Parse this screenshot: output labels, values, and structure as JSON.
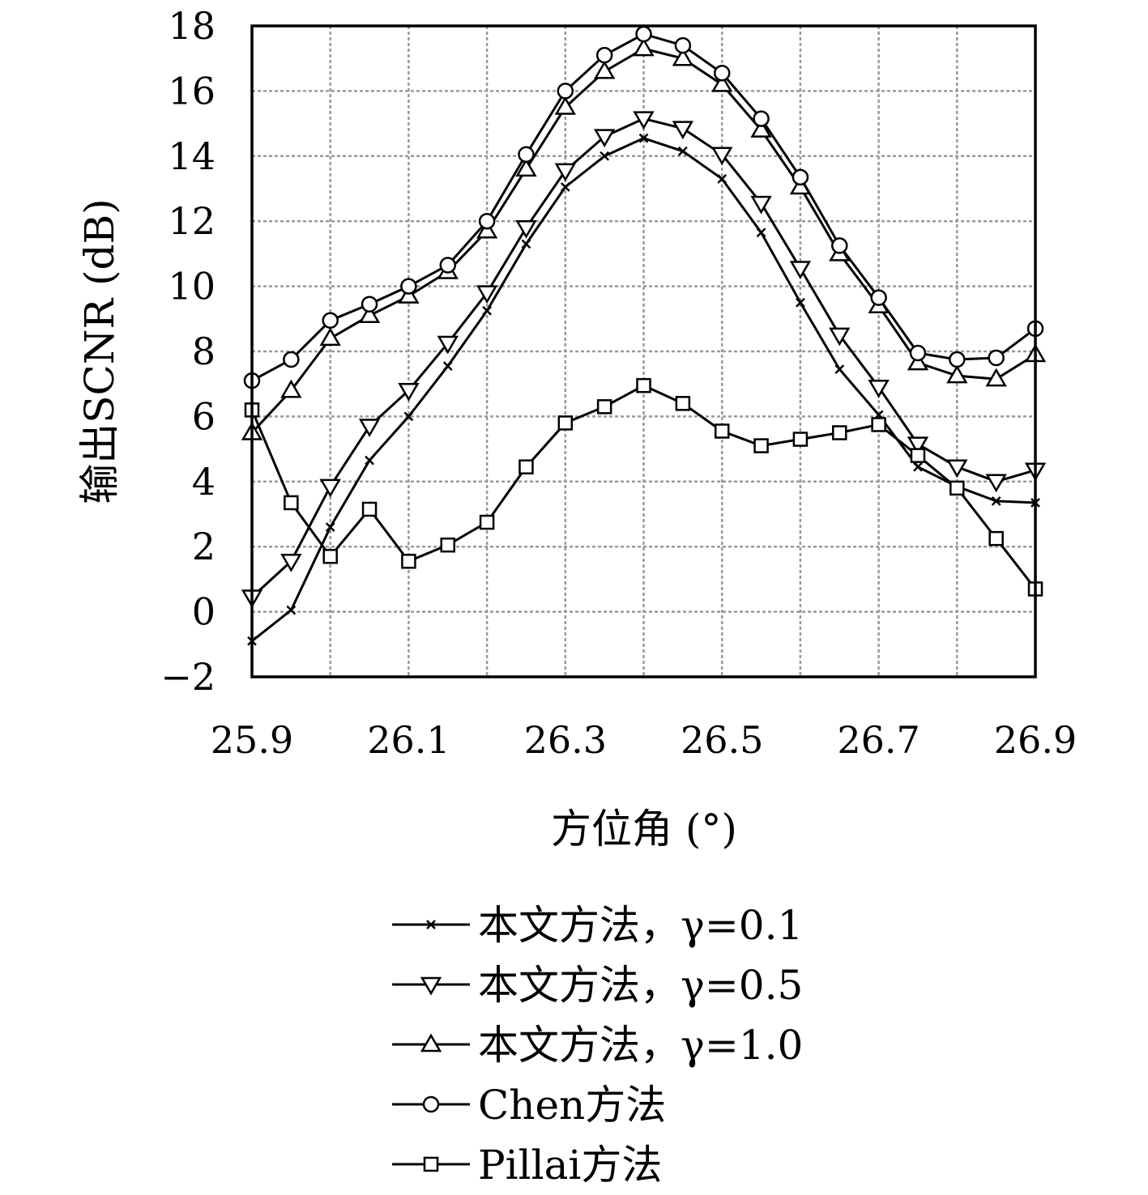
{
  "chart_data": {
    "type": "line",
    "xlabel": "方位角 (°)",
    "ylabel": "输出SCNR (dB)",
    "xlim": [
      25.9,
      26.9
    ],
    "ylim": [
      -2,
      18
    ],
    "xticks": [
      "25.9",
      "26.1",
      "26.3",
      "26.5",
      "26.7",
      "26.9"
    ],
    "yticks": [
      "−2",
      "0",
      "2",
      "4",
      "6",
      "8",
      "10",
      "12",
      "14",
      "16",
      "18"
    ],
    "grid": true,
    "legend_position": "below",
    "x": [
      25.9,
      25.95,
      26.0,
      26.05,
      26.1,
      26.15,
      26.2,
      26.25,
      26.3,
      26.35,
      26.4,
      26.45,
      26.5,
      26.55,
      26.6,
      26.65,
      26.7,
      26.75,
      26.8,
      26.85,
      26.9
    ],
    "series": [
      {
        "name": "本文方法，γ=0.1",
        "marker": "x",
        "values": [
          -0.9,
          0.05,
          2.6,
          4.65,
          6.0,
          7.55,
          9.25,
          11.3,
          13.05,
          14.0,
          14.55,
          14.15,
          13.3,
          11.65,
          9.5,
          7.45,
          6.05,
          4.45,
          3.85,
          3.4,
          3.35
        ]
      },
      {
        "name": "本文方法，γ=0.5",
        "marker": "triangle-down",
        "values": [
          0.45,
          1.55,
          3.85,
          5.7,
          6.8,
          8.25,
          9.8,
          11.8,
          13.55,
          14.6,
          15.15,
          14.85,
          14.05,
          12.55,
          10.55,
          8.5,
          6.9,
          5.15,
          4.45,
          4.0,
          4.35
        ]
      },
      {
        "name": "本文方法，γ=1.0",
        "marker": "triangle-up",
        "values": [
          5.5,
          6.8,
          8.4,
          9.1,
          9.7,
          10.45,
          11.7,
          13.6,
          15.5,
          16.6,
          17.3,
          17.0,
          16.2,
          14.8,
          13.05,
          11.0,
          9.4,
          7.65,
          7.25,
          7.15,
          7.9
        ]
      },
      {
        "name": "Chen方法",
        "marker": "circle",
        "values": [
          7.1,
          7.75,
          8.95,
          9.45,
          10.0,
          10.65,
          12.0,
          14.05,
          16.0,
          17.1,
          17.75,
          17.4,
          16.55,
          15.15,
          13.35,
          11.25,
          9.65,
          7.95,
          7.75,
          7.8,
          8.7
        ]
      },
      {
        "name": "Pillai方法",
        "marker": "square",
        "values": [
          6.2,
          3.35,
          1.7,
          3.15,
          1.55,
          2.05,
          2.75,
          4.45,
          5.8,
          6.3,
          6.95,
          6.4,
          5.55,
          5.1,
          5.3,
          5.5,
          5.75,
          4.8,
          3.8,
          2.25,
          0.7
        ]
      }
    ]
  },
  "colors": {
    "line": "#000000",
    "grid": "#999999",
    "background": "#ffffff"
  }
}
